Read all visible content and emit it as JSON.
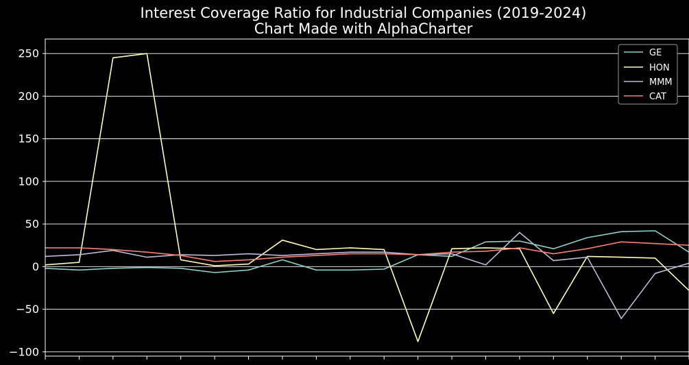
{
  "chart_data": {
    "type": "line",
    "title": "Interest Coverage Ratio for Industrial Companies (2019-2024)",
    "subtitle": "Chart Made with AlphaCharter",
    "xlabel": "",
    "ylabel": "",
    "ylim": [
      -105,
      267
    ],
    "yticks": [
      250,
      200,
      150,
      100,
      50,
      0,
      -50,
      -100
    ],
    "ytick_labels": [
      "250",
      "200",
      "150",
      "100",
      "50",
      "0",
      "−50",
      "−100"
    ],
    "x": [
      0,
      1,
      2,
      3,
      4,
      5,
      6,
      7,
      8,
      9,
      10,
      11,
      12,
      13,
      14,
      15,
      16,
      17,
      18,
      19
    ],
    "xlim": [
      0,
      19
    ],
    "grid": "horizontal",
    "legend_position": "top-right",
    "background": "#000000",
    "series": [
      {
        "name": "GE",
        "color": "#8dd3c7",
        "values": [
          -2,
          -4,
          -2,
          -1,
          -2,
          -7,
          -4,
          8,
          -4,
          -4,
          -3,
          14,
          12,
          29,
          30,
          21,
          34,
          41,
          42,
          17
        ]
      },
      {
        "name": "HON",
        "color": "#ffffb3",
        "values": [
          2,
          5,
          245,
          250,
          8,
          1,
          3,
          31,
          20,
          22,
          20,
          -88,
          21,
          22,
          21,
          -55,
          12,
          11,
          10,
          -28
        ]
      },
      {
        "name": "MMM",
        "color": "#bebada",
        "values": [
          12,
          14,
          19,
          11,
          14,
          13,
          15,
          13,
          15,
          17,
          17,
          14,
          15,
          2,
          40,
          7,
          11,
          -61,
          -8,
          4
        ]
      },
      {
        "name": "CAT",
        "color": "#fb8072",
        "values": [
          22,
          22,
          20,
          17,
          13,
          6,
          8,
          11,
          13,
          15,
          15,
          14,
          17,
          18,
          22,
          15,
          21,
          29,
          27,
          25
        ]
      }
    ]
  }
}
